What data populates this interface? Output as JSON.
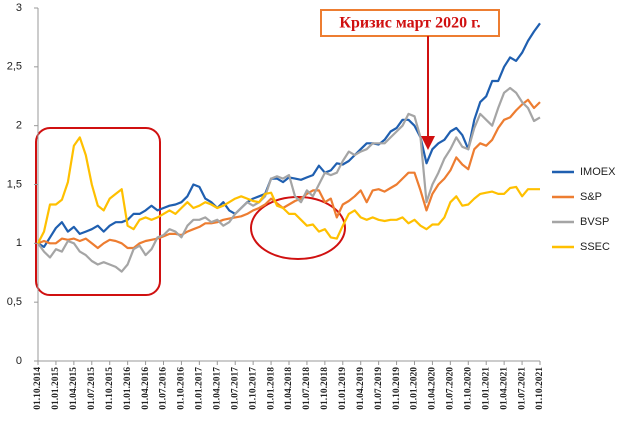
{
  "chart_data": {
    "type": "line",
    "annotation": "Кризис март 2020 г.",
    "categories": [
      "01.10.2014",
      null,
      null,
      "01.01.2015",
      null,
      null,
      "01.04.2015",
      null,
      null,
      "01.07.2015",
      null,
      null,
      "01.10.2015",
      null,
      null,
      "01.01.2016",
      null,
      null,
      "01.04.2016",
      null,
      null,
      "01.07.2016",
      null,
      null,
      "01.10.2016",
      null,
      null,
      "01.01.2017",
      null,
      null,
      "01.04.2017",
      null,
      null,
      "01.07.2017",
      null,
      null,
      "01.10.2017",
      null,
      null,
      "01.01.2018",
      null,
      null,
      "01.04.2018",
      null,
      null,
      "01.07.2018",
      null,
      null,
      "01.10.2018",
      null,
      null,
      "01.01.2019",
      null,
      null,
      "01.04.2019",
      null,
      null,
      "01.07.2019",
      null,
      null,
      "01.10.2019",
      null,
      null,
      "01.01.2020",
      null,
      null,
      "01.04.2020",
      null,
      null,
      "01.07.2020",
      null,
      null,
      "01.10.2020",
      null,
      null,
      "01.01.2021",
      null,
      null,
      "01.04.2021",
      null,
      null,
      "01.07.2021",
      null,
      null,
      "01.10.2021"
    ],
    "series": [
      {
        "name": "IMOEX",
        "color": "#1f5fb0",
        "values": [
          1.0,
          0.97,
          1.05,
          1.13,
          1.18,
          1.1,
          1.14,
          1.08,
          1.1,
          1.12,
          1.15,
          1.1,
          1.15,
          1.18,
          1.18,
          1.2,
          1.25,
          1.25,
          1.28,
          1.32,
          1.28,
          1.3,
          1.32,
          1.33,
          1.35,
          1.4,
          1.5,
          1.48,
          1.38,
          1.35,
          1.3,
          1.35,
          1.28,
          1.25,
          1.3,
          1.35,
          1.38,
          1.4,
          1.42,
          1.55,
          1.55,
          1.52,
          1.56,
          1.55,
          1.54,
          1.56,
          1.58,
          1.66,
          1.6,
          1.62,
          1.68,
          1.67,
          1.7,
          1.75,
          1.8,
          1.85,
          1.85,
          1.84,
          1.88,
          1.95,
          1.98,
          2.05,
          2.05,
          2.0,
          1.9,
          1.68,
          1.8,
          1.85,
          1.88,
          1.95,
          1.98,
          1.92,
          1.8,
          2.05,
          2.2,
          2.25,
          2.38,
          2.38,
          2.5,
          2.58,
          2.55,
          2.62,
          2.72,
          2.8,
          2.87
        ]
      },
      {
        "name": "S&P",
        "color": "#ed7d31",
        "values": [
          1.0,
          1.02,
          1.0,
          1.0,
          1.04,
          1.03,
          1.04,
          1.02,
          1.04,
          1.0,
          0.96,
          1.0,
          1.03,
          1.02,
          1.0,
          0.96,
          0.96,
          1.0,
          1.02,
          1.03,
          1.04,
          1.06,
          1.08,
          1.08,
          1.07,
          1.1,
          1.12,
          1.14,
          1.17,
          1.17,
          1.18,
          1.2,
          1.21,
          1.22,
          1.23,
          1.25,
          1.28,
          1.3,
          1.33,
          1.38,
          1.34,
          1.3,
          1.33,
          1.36,
          1.38,
          1.42,
          1.45,
          1.45,
          1.35,
          1.38,
          1.22,
          1.33,
          1.36,
          1.4,
          1.45,
          1.35,
          1.45,
          1.46,
          1.44,
          1.47,
          1.5,
          1.55,
          1.6,
          1.6,
          1.45,
          1.28,
          1.42,
          1.5,
          1.55,
          1.62,
          1.73,
          1.67,
          1.63,
          1.8,
          1.85,
          1.83,
          1.88,
          1.98,
          2.05,
          2.07,
          2.13,
          2.18,
          2.22,
          2.15,
          2.2
        ]
      },
      {
        "name": "BVSP",
        "color": "#a5a5a5",
        "values": [
          1.0,
          0.93,
          0.88,
          0.95,
          0.93,
          1.02,
          1.0,
          0.93,
          0.9,
          0.85,
          0.82,
          0.84,
          0.82,
          0.8,
          0.76,
          0.82,
          0.95,
          0.98,
          0.9,
          0.95,
          1.05,
          1.07,
          1.12,
          1.1,
          1.05,
          1.15,
          1.2,
          1.2,
          1.22,
          1.18,
          1.2,
          1.15,
          1.18,
          1.25,
          1.3,
          1.35,
          1.32,
          1.35,
          1.4,
          1.55,
          1.57,
          1.55,
          1.58,
          1.4,
          1.35,
          1.45,
          1.4,
          1.5,
          1.6,
          1.58,
          1.6,
          1.7,
          1.78,
          1.75,
          1.78,
          1.8,
          1.85,
          1.85,
          1.85,
          1.9,
          1.95,
          2.0,
          2.1,
          2.08,
          1.9,
          1.35,
          1.5,
          1.6,
          1.72,
          1.8,
          1.9,
          1.82,
          1.8,
          1.98,
          2.1,
          2.05,
          2.0,
          2.15,
          2.28,
          2.32,
          2.28,
          2.2,
          2.15,
          2.04,
          2.07
        ]
      },
      {
        "name": "SSEC",
        "color": "#ffc000",
        "values": [
          1.0,
          1.1,
          1.33,
          1.33,
          1.37,
          1.52,
          1.83,
          1.9,
          1.75,
          1.5,
          1.32,
          1.28,
          1.38,
          1.42,
          1.46,
          1.15,
          1.12,
          1.2,
          1.22,
          1.2,
          1.22,
          1.25,
          1.28,
          1.25,
          1.3,
          1.35,
          1.3,
          1.32,
          1.35,
          1.33,
          1.3,
          1.32,
          1.35,
          1.38,
          1.4,
          1.38,
          1.36,
          1.35,
          1.42,
          1.43,
          1.32,
          1.3,
          1.25,
          1.25,
          1.2,
          1.15,
          1.16,
          1.1,
          1.12,
          1.05,
          1.04,
          1.15,
          1.25,
          1.28,
          1.22,
          1.2,
          1.22,
          1.2,
          1.19,
          1.2,
          1.2,
          1.22,
          1.17,
          1.2,
          1.15,
          1.12,
          1.16,
          1.16,
          1.22,
          1.35,
          1.4,
          1.32,
          1.33,
          1.38,
          1.42,
          1.43,
          1.44,
          1.42,
          1.42,
          1.47,
          1.48,
          1.4,
          1.46,
          1.46,
          1.46
        ]
      }
    ],
    "ylim": [
      0,
      3
    ],
    "yticks": [
      0,
      {
        "value": 0.5,
        "label": "0,5"
      },
      1,
      {
        "value": 1.5,
        "label": "1,5"
      },
      2,
      {
        "value": 2.5,
        "label": "2,5"
      },
      3
    ],
    "grid": false,
    "legend": "right"
  }
}
